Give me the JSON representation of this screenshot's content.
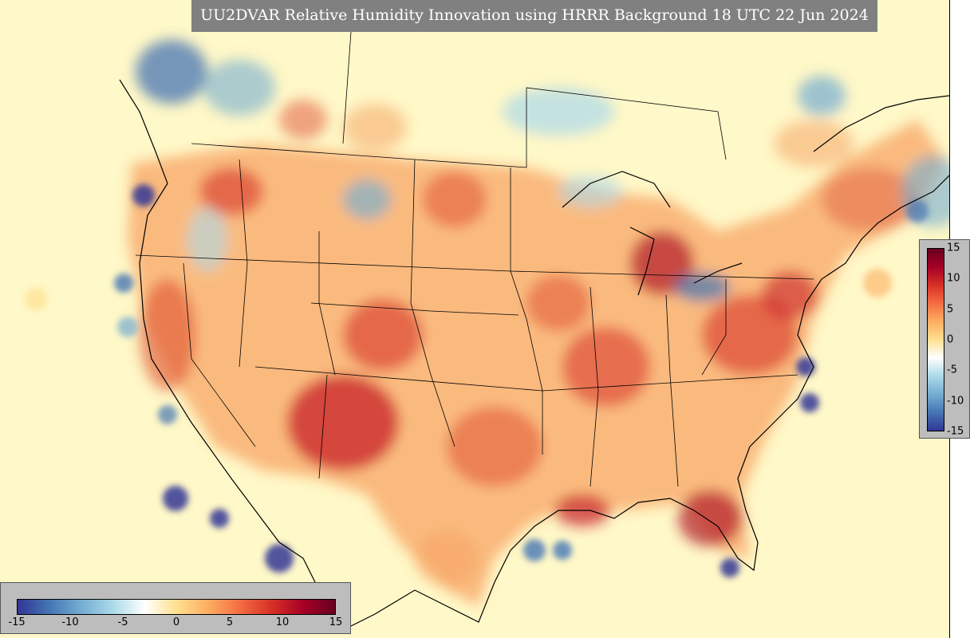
{
  "title": "UU2DVAR Relative Humidity Innovation using HRRR Background 18 UTC 22 Jun 2024",
  "colorbar_bottom": {
    "ticks": [
      "-15",
      "-10",
      "-5",
      "0",
      "5",
      "10",
      "15"
    ]
  },
  "colorbar_right": {
    "ticks": [
      "15",
      "10",
      "5",
      "0",
      "-5",
      "-10",
      "-15"
    ]
  },
  "colormap": [
    "#313695",
    "#4575b4",
    "#74add1",
    "#abd9e9",
    "#ffffff",
    "#fee090",
    "#fdae61",
    "#f46d43",
    "#d73027",
    "#a50026",
    "#67001f"
  ],
  "range": [
    -15,
    15
  ]
}
